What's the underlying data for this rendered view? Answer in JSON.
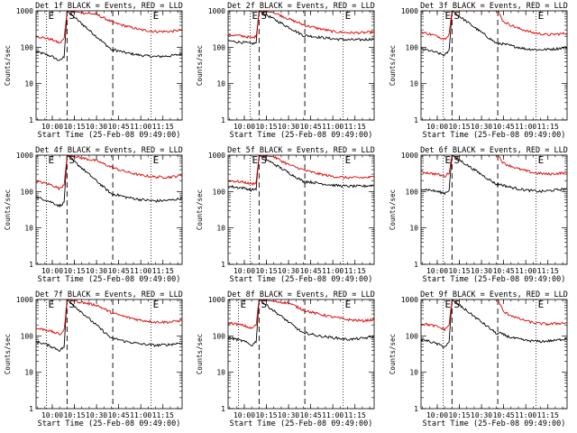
{
  "figure": {
    "start_time_label": "Start Time (25-Feb-08 09:49:00)",
    "y_axis_label": "Counts/sec",
    "x_tick_labels": [
      "10:00",
      "10:15",
      "10:30",
      "10:45",
      "11:00",
      "11:15"
    ],
    "y_tick_labels": [
      "1",
      "10",
      "100",
      "1000"
    ],
    "marker_labels": [
      "E",
      "S",
      "E"
    ]
  },
  "colors": {
    "events": "#000000",
    "lld": "#dd0000",
    "axes": "#000000"
  },
  "chart_data": [
    {
      "type": "line",
      "title": "Det 1f BLACK = Events, RED = LLD",
      "ylabel": "Counts/sec",
      "xlabel": "Start Time (25-Feb-08 09:49:00)",
      "yscale": "log",
      "ylim": [
        1,
        1000
      ],
      "xlim": [
        "09:49",
        "11:28"
      ],
      "markers": {
        "dotted_E": [
          "09:56",
          "11:07"
        ],
        "dashed_S": [
          "10:10"
        ],
        "dashed_E": [
          "10:41"
        ]
      },
      "series": [
        {
          "name": "BLACK = Events",
          "color": "#000000",
          "x": [
            "09:49",
            "09:55",
            "10:00",
            "10:05",
            "10:08",
            "10:10",
            "10:41",
            "10:42",
            "10:50",
            "11:00",
            "11:10",
            "11:20",
            "11:28"
          ],
          "values": [
            75,
            65,
            55,
            42,
            55,
            1000,
            80,
            85,
            70,
            60,
            55,
            58,
            65
          ]
        },
        {
          "name": "RED = LLD",
          "color": "#dd0000",
          "x": [
            "09:49",
            "09:55",
            "10:00",
            "10:05",
            "10:08",
            "10:10",
            "10:30",
            "10:41",
            "10:50",
            "11:00",
            "11:10",
            "11:20",
            "11:28"
          ],
          "values": [
            200,
            180,
            160,
            130,
            170,
            1000,
            800,
            480,
            380,
            300,
            270,
            270,
            300
          ]
        }
      ]
    },
    {
      "type": "line",
      "title": "Det 2f BLACK = Events, RED = LLD",
      "ylabel": "Counts/sec",
      "xlabel": "Start Time (25-Feb-08 09:49:00)",
      "yscale": "log",
      "ylim": [
        1,
        1000
      ],
      "xlim": [
        "09:49",
        "11:28"
      ],
      "markers": {
        "dotted_E": [
          "10:04",
          "11:07"
        ],
        "dashed_S": [
          "10:10"
        ],
        "dashed_E": [
          "10:41"
        ]
      },
      "series": [
        {
          "name": "BLACK = Events",
          "color": "#000000",
          "x": [
            "09:49",
            "09:55",
            "10:00",
            "10:05",
            "10:08",
            "10:10",
            "10:41",
            "10:42",
            "10:50",
            "11:00",
            "11:10",
            "11:20",
            "11:28"
          ],
          "values": [
            150,
            140,
            135,
            125,
            130,
            1000,
            200,
            210,
            190,
            170,
            160,
            160,
            170
          ]
        },
        {
          "name": "RED = LLD",
          "color": "#dd0000",
          "x": [
            "09:49",
            "09:55",
            "10:00",
            "10:05",
            "10:08",
            "10:10",
            "10:20",
            "10:30",
            "10:41",
            "10:50",
            "11:00",
            "11:10",
            "11:20",
            "11:28"
          ],
          "values": [
            220,
            210,
            200,
            180,
            200,
            1000,
            900,
            600,
            400,
            330,
            270,
            250,
            250,
            260
          ]
        }
      ]
    },
    {
      "type": "line",
      "title": "Det 3f BLACK = Events, RED = LLD",
      "ylabel": "Counts/sec",
      "xlabel": "Start Time (25-Feb-08 09:49:00)",
      "yscale": "log",
      "ylim": [
        1,
        1000
      ],
      "xlim": [
        "09:49",
        "11:28"
      ],
      "markers": {
        "dotted_E": [
          "10:04",
          "11:07"
        ],
        "dashed_S": [
          "10:10"
        ],
        "dashed_E": [
          "10:41"
        ]
      },
      "series": [
        {
          "name": "BLACK = Events",
          "color": "#000000",
          "x": [
            "09:49",
            "09:55",
            "10:00",
            "10:05",
            "10:08",
            "10:10",
            "10:41",
            "10:42",
            "10:50",
            "11:00",
            "11:10",
            "11:20",
            "11:28"
          ],
          "values": [
            90,
            80,
            70,
            60,
            80,
            1000,
            120,
            130,
            110,
            90,
            85,
            90,
            100
          ]
        },
        {
          "name": "RED = LLD",
          "color": "#dd0000",
          "x": [
            "09:49",
            "09:55",
            "10:00",
            "10:05",
            "10:08",
            "10:10",
            "10:41",
            "10:45",
            "10:55",
            "11:05",
            "11:15",
            "11:28"
          ],
          "values": [
            260,
            230,
            200,
            170,
            230,
            1000,
            1000,
            500,
            330,
            250,
            220,
            240
          ]
        }
      ]
    },
    {
      "type": "line",
      "title": "Det 4f BLACK = Events, RED = LLD",
      "ylabel": "Counts/sec",
      "xlabel": "Start Time (25-Feb-08 09:49:00)",
      "yscale": "log",
      "ylim": [
        1,
        1000
      ],
      "xlim": [
        "09:49",
        "11:28"
      ],
      "markers": {
        "dotted_E": [
          "09:56",
          "11:07"
        ],
        "dashed_S": [
          "10:10"
        ],
        "dashed_E": [
          "10:41"
        ]
      },
      "series": [
        {
          "name": "BLACK = Events",
          "color": "#000000",
          "x": [
            "09:49",
            "09:55",
            "10:00",
            "10:05",
            "10:08",
            "10:10",
            "10:41",
            "10:42",
            "10:50",
            "11:00",
            "11:10",
            "11:20",
            "11:28"
          ],
          "values": [
            70,
            60,
            50,
            40,
            50,
            1000,
            80,
            85,
            70,
            60,
            55,
            58,
            65
          ]
        },
        {
          "name": "RED = LLD",
          "color": "#dd0000",
          "x": [
            "09:49",
            "09:55",
            "10:00",
            "10:05",
            "10:08",
            "10:10",
            "10:30",
            "10:41",
            "10:50",
            "11:00",
            "11:10",
            "11:20",
            "11:28"
          ],
          "values": [
            190,
            170,
            150,
            120,
            160,
            1000,
            700,
            450,
            350,
            280,
            250,
            250,
            280
          ]
        }
      ]
    },
    {
      "type": "line",
      "title": "Det 5f BLACK = Events, RED = LLD",
      "ylabel": "Counts/sec",
      "xlabel": "Start Time (25-Feb-08 09:49:00)",
      "yscale": "log",
      "ylim": [
        1,
        1000
      ],
      "xlim": [
        "09:49",
        "11:28"
      ],
      "markers": {
        "dotted_E": [
          "10:04",
          "11:07"
        ],
        "dashed_S": [
          "10:10"
        ],
        "dashed_E": [
          "10:41"
        ]
      },
      "series": [
        {
          "name": "BLACK = Events",
          "color": "#000000",
          "x": [
            "09:49",
            "09:55",
            "10:00",
            "10:05",
            "10:08",
            "10:10",
            "10:41",
            "10:42",
            "10:50",
            "11:00",
            "11:10",
            "11:20",
            "11:28"
          ],
          "values": [
            140,
            130,
            125,
            110,
            120,
            1000,
            180,
            190,
            170,
            150,
            140,
            140,
            150
          ]
        },
        {
          "name": "RED = LLD",
          "color": "#dd0000",
          "x": [
            "09:49",
            "09:55",
            "10:00",
            "10:05",
            "10:08",
            "10:10",
            "10:20",
            "10:30",
            "10:41",
            "10:50",
            "11:00",
            "11:10",
            "11:20",
            "11:28"
          ],
          "values": [
            200,
            190,
            180,
            160,
            180,
            1000,
            900,
            550,
            380,
            310,
            260,
            240,
            240,
            250
          ]
        }
      ]
    },
    {
      "type": "line",
      "title": "Det 6f BLACK = Events, RED = LLD",
      "ylabel": "Counts/sec",
      "xlabel": "Start Time (25-Feb-08 09:49:00)",
      "yscale": "log",
      "ylim": [
        1,
        1000
      ],
      "xlim": [
        "09:49",
        "11:28"
      ],
      "markers": {
        "dotted_E": [
          "10:04",
          "11:07"
        ],
        "dashed_S": [
          "10:10"
        ],
        "dashed_E": [
          "10:41"
        ]
      },
      "series": [
        {
          "name": "BLACK = Events",
          "color": "#000000",
          "x": [
            "09:49",
            "09:55",
            "10:00",
            "10:05",
            "10:08",
            "10:10",
            "10:41",
            "10:42",
            "10:50",
            "11:00",
            "11:10",
            "11:20",
            "11:28"
          ],
          "values": [
            120,
            110,
            100,
            90,
            110,
            1000,
            150,
            160,
            130,
            110,
            100,
            110,
            120
          ]
        },
        {
          "name": "RED = LLD",
          "color": "#dd0000",
          "x": [
            "09:49",
            "09:55",
            "10:00",
            "10:05",
            "10:08",
            "10:10",
            "10:41",
            "10:45",
            "10:55",
            "11:05",
            "11:15",
            "11:28"
          ],
          "values": [
            350,
            320,
            300,
            260,
            330,
            1000,
            1000,
            600,
            420,
            330,
            300,
            330
          ]
        }
      ]
    },
    {
      "type": "line",
      "title": "Det 7f BLACK = Events, RED = LLD",
      "ylabel": "Counts/sec",
      "xlabel": "Start Time (25-Feb-08 09:49:00)",
      "yscale": "log",
      "ylim": [
        1,
        1000
      ],
      "xlim": [
        "09:49",
        "11:28"
      ],
      "markers": {
        "dotted_E": [
          "09:56",
          "11:07"
        ],
        "dashed_S": [
          "10:10"
        ],
        "dashed_E": [
          "10:41"
        ]
      },
      "series": [
        {
          "name": "BLACK = Events",
          "color": "#000000",
          "x": [
            "09:49",
            "09:55",
            "10:00",
            "10:05",
            "10:08",
            "10:10",
            "10:41",
            "10:42",
            "10:50",
            "11:00",
            "11:10",
            "11:20",
            "11:28"
          ],
          "values": [
            70,
            60,
            50,
            40,
            50,
            1000,
            80,
            85,
            70,
            60,
            55,
            58,
            65
          ]
        },
        {
          "name": "RED = LLD",
          "color": "#dd0000",
          "x": [
            "09:49",
            "09:55",
            "10:00",
            "10:05",
            "10:08",
            "10:10",
            "10:30",
            "10:41",
            "10:50",
            "11:00",
            "11:10",
            "11:20",
            "11:28"
          ],
          "values": [
            160,
            150,
            130,
            110,
            140,
            1000,
            700,
            420,
            330,
            270,
            240,
            240,
            270
          ]
        }
      ]
    },
    {
      "type": "line",
      "title": "Det 8f BLACK = Events, RED = LLD",
      "ylabel": "Counts/sec",
      "xlabel": "Start Time (25-Feb-08 09:49:00)",
      "yscale": "log",
      "ylim": [
        1,
        1000
      ],
      "xlim": [
        "09:49",
        "11:28"
      ],
      "markers": {
        "dotted_E": [
          "09:56",
          "11:07"
        ],
        "dashed_S": [
          "10:10"
        ],
        "dashed_E": [
          "10:41"
        ]
      },
      "series": [
        {
          "name": "BLACK = Events",
          "color": "#000000",
          "x": [
            "09:49",
            "09:55",
            "10:00",
            "10:05",
            "10:08",
            "10:10",
            "10:41",
            "10:42",
            "10:50",
            "11:00",
            "11:10",
            "11:20",
            "11:28"
          ],
          "values": [
            90,
            80,
            70,
            55,
            70,
            1000,
            110,
            120,
            100,
            90,
            80,
            85,
            95
          ]
        },
        {
          "name": "RED = LLD",
          "color": "#dd0000",
          "x": [
            "09:49",
            "09:55",
            "10:00",
            "10:05",
            "10:08",
            "10:10",
            "10:30",
            "10:41",
            "10:50",
            "11:00",
            "11:10",
            "11:20",
            "11:28"
          ],
          "values": [
            230,
            210,
            190,
            160,
            200,
            1000,
            800,
            500,
            400,
            330,
            280,
            260,
            280
          ]
        }
      ]
    },
    {
      "type": "line",
      "title": "Det 9f BLACK = Events, RED = LLD",
      "ylabel": "Counts/sec",
      "xlabel": "Start Time (25-Feb-08 09:49:00)",
      "yscale": "log",
      "ylim": [
        1,
        1000
      ],
      "xlim": [
        "09:49",
        "11:28"
      ],
      "markers": {
        "dotted_E": [
          "10:04",
          "11:07"
        ],
        "dashed_S": [
          "10:10"
        ],
        "dashed_E": [
          "10:41"
        ]
      },
      "series": [
        {
          "name": "BLACK = Events",
          "color": "#000000",
          "x": [
            "09:49",
            "09:55",
            "10:00",
            "10:05",
            "10:08",
            "10:10",
            "10:41",
            "10:42",
            "10:50",
            "11:00",
            "11:10",
            "11:20",
            "11:28"
          ],
          "values": [
            80,
            70,
            60,
            50,
            65,
            1000,
            110,
            120,
            90,
            75,
            70,
            75,
            85
          ]
        },
        {
          "name": "RED = LLD",
          "color": "#dd0000",
          "x": [
            "09:49",
            "09:55",
            "10:00",
            "10:05",
            "10:08",
            "10:10",
            "10:41",
            "10:45",
            "10:55",
            "11:05",
            "11:15",
            "11:28"
          ],
          "values": [
            220,
            200,
            180,
            150,
            200,
            1000,
            1000,
            450,
            300,
            230,
            210,
            230
          ]
        }
      ]
    }
  ]
}
